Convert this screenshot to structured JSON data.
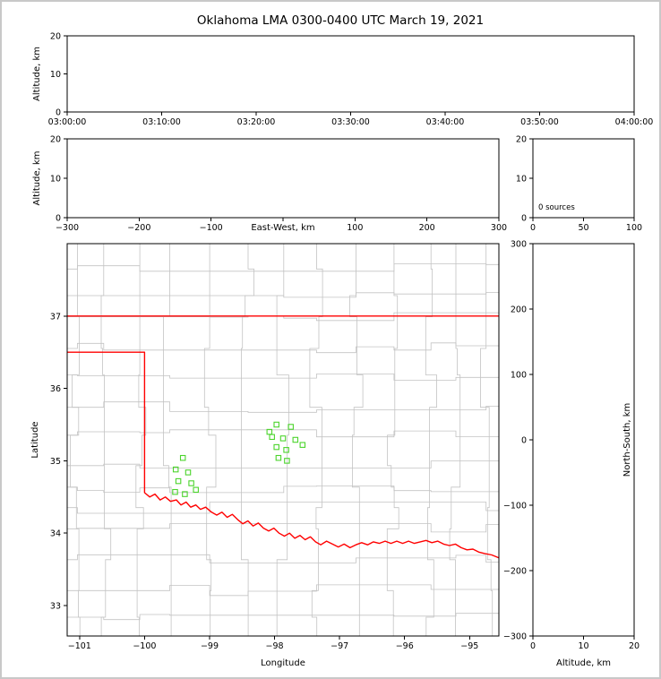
{
  "figure": {
    "title": "Oklahoma LMA 0300-0400 UTC March 19, 2021",
    "background_color": "#ffffff",
    "frame_color": "#c8c8c8"
  },
  "chart_data": [
    {
      "id": "time_height",
      "type": "scatter",
      "ylabel": "Altitude, km",
      "xlim": [
        0,
        3600
      ],
      "x_tick_labels": [
        "03:00:00",
        "03:10:00",
        "03:20:00",
        "03:30:00",
        "03:40:00",
        "03:50:00",
        "04:00:00"
      ],
      "ylim": [
        0,
        20
      ],
      "y_ticks": [
        0,
        10,
        20
      ],
      "points": []
    },
    {
      "id": "east_west_height",
      "type": "scatter",
      "xlabel": "East-West, km",
      "ylabel": "Altitude, km",
      "xlim": [
        -300,
        300
      ],
      "x_ticks": [
        -300,
        -200,
        -100,
        0,
        100,
        200,
        300
      ],
      "ylim": [
        0,
        20
      ],
      "y_ticks": [
        0,
        10,
        20
      ],
      "points": []
    },
    {
      "id": "source_histogram",
      "type": "line",
      "annotation": "0 sources",
      "xlim": [
        0,
        100
      ],
      "x_ticks": [
        0,
        50,
        100
      ],
      "ylim": [
        0,
        20
      ],
      "y_ticks": [
        0,
        10,
        20
      ],
      "points": []
    },
    {
      "id": "plan_view_map",
      "type": "scatter",
      "xlabel": "Longitude",
      "ylabel": "Latitude",
      "xlim": [
        -101.19,
        -94.55
      ],
      "x_ticks": [
        -101,
        -100,
        -99,
        -98,
        -97,
        -96,
        -95
      ],
      "ylim": [
        32.58,
        38.0
      ],
      "y_ticks": [
        33,
        34,
        35,
        36,
        37
      ],
      "county_line_color": "#c3c3c3",
      "state_border_color": "#ff0000",
      "station_color": "#4bd42c",
      "kansas_border_lat": 37.0,
      "oklahoma_border": [
        [
          -101.19,
          36.5
        ],
        [
          -100.0,
          36.5
        ],
        [
          -100.0,
          34.56
        ],
        [
          -99.92,
          34.5
        ],
        [
          -99.84,
          34.54
        ],
        [
          -99.76,
          34.46
        ],
        [
          -99.68,
          34.5
        ],
        [
          -99.6,
          34.44
        ],
        [
          -99.51,
          34.46
        ],
        [
          -99.44,
          34.39
        ],
        [
          -99.36,
          34.43
        ],
        [
          -99.29,
          34.36
        ],
        [
          -99.21,
          34.39
        ],
        [
          -99.14,
          34.33
        ],
        [
          -99.06,
          34.36
        ],
        [
          -98.97,
          34.29
        ],
        [
          -98.89,
          34.25
        ],
        [
          -98.81,
          34.29
        ],
        [
          -98.73,
          34.22
        ],
        [
          -98.65,
          34.26
        ],
        [
          -98.57,
          34.19
        ],
        [
          -98.49,
          34.13
        ],
        [
          -98.41,
          34.17
        ],
        [
          -98.33,
          34.1
        ],
        [
          -98.25,
          34.14
        ],
        [
          -98.17,
          34.07
        ],
        [
          -98.09,
          34.03
        ],
        [
          -98.01,
          34.07
        ],
        [
          -97.93,
          34.0
        ],
        [
          -97.85,
          33.96
        ],
        [
          -97.77,
          34.0
        ],
        [
          -97.69,
          33.93
        ],
        [
          -97.61,
          33.97
        ],
        [
          -97.53,
          33.91
        ],
        [
          -97.45,
          33.95
        ],
        [
          -97.37,
          33.88
        ],
        [
          -97.29,
          33.84
        ],
        [
          -97.2,
          33.89
        ],
        [
          -97.11,
          33.85
        ],
        [
          -97.02,
          33.81
        ],
        [
          -96.93,
          33.85
        ],
        [
          -96.84,
          33.8
        ],
        [
          -96.75,
          33.84
        ],
        [
          -96.66,
          33.87
        ],
        [
          -96.57,
          33.84
        ],
        [
          -96.48,
          33.88
        ],
        [
          -96.39,
          33.86
        ],
        [
          -96.3,
          33.89
        ],
        [
          -96.21,
          33.86
        ],
        [
          -96.12,
          33.89
        ],
        [
          -96.03,
          33.86
        ],
        [
          -95.94,
          33.89
        ],
        [
          -95.85,
          33.86
        ],
        [
          -95.76,
          33.88
        ],
        [
          -95.67,
          33.9
        ],
        [
          -95.58,
          33.87
        ],
        [
          -95.49,
          33.89
        ],
        [
          -95.4,
          33.85
        ],
        [
          -95.31,
          33.83
        ],
        [
          -95.22,
          33.85
        ],
        [
          -95.13,
          33.8
        ],
        [
          -95.04,
          33.77
        ],
        [
          -94.95,
          33.78
        ],
        [
          -94.86,
          33.74
        ],
        [
          -94.77,
          33.72
        ],
        [
          -94.66,
          33.7
        ],
        [
          -94.55,
          33.66
        ]
      ],
      "stations": [
        [
          -99.41,
          35.04
        ],
        [
          -99.52,
          34.88
        ],
        [
          -99.33,
          34.84
        ],
        [
          -99.48,
          34.72
        ],
        [
          -99.28,
          34.69
        ],
        [
          -99.53,
          34.57
        ],
        [
          -99.38,
          34.54
        ],
        [
          -99.21,
          34.6
        ],
        [
          -98.08,
          35.4
        ],
        [
          -97.97,
          35.5
        ],
        [
          -97.75,
          35.47
        ],
        [
          -98.04,
          35.33
        ],
        [
          -97.87,
          35.31
        ],
        [
          -97.68,
          35.29
        ],
        [
          -97.97,
          35.19
        ],
        [
          -97.82,
          35.15
        ],
        [
          -97.57,
          35.22
        ],
        [
          -97.94,
          35.04
        ],
        [
          -97.81,
          35.0
        ]
      ]
    },
    {
      "id": "north_south_height",
      "type": "scatter",
      "xlabel": "Altitude, km",
      "ylabel": "North-South, km",
      "xlim": [
        0,
        20
      ],
      "x_ticks": [
        0,
        10,
        20
      ],
      "ylim": [
        -300,
        300
      ],
      "y_ticks": [
        300,
        200,
        100,
        0,
        -100,
        -200,
        -300
      ],
      "points": []
    }
  ]
}
